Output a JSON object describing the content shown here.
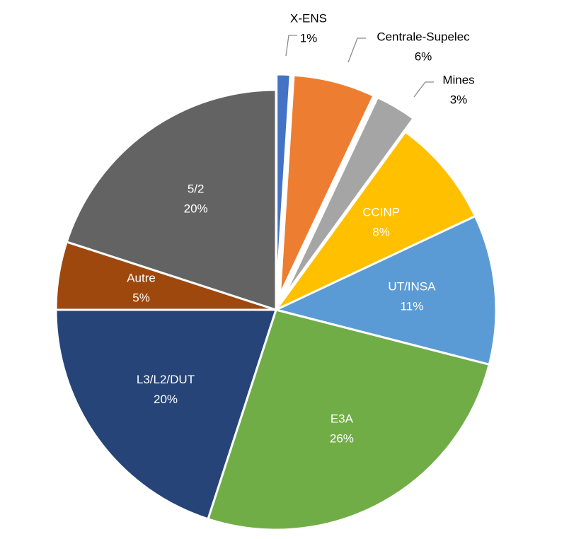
{
  "chart_data": {
    "type": "pie",
    "slices": [
      {
        "name": "X-ENS",
        "value": 1,
        "label": "1%",
        "color": "#4472C4",
        "exploded": true
      },
      {
        "name": "Centrale-Supelec",
        "value": 6,
        "label": "6%",
        "color": "#ED7D31",
        "exploded": true
      },
      {
        "name": "Mines",
        "value": 3,
        "label": "3%",
        "color": "#A5A5A5",
        "exploded": true
      },
      {
        "name": "CCINP",
        "value": 8,
        "label": "8%",
        "color": "#FFC000",
        "exploded": false
      },
      {
        "name": "UT/INSA",
        "value": 11,
        "label": "11%",
        "color": "#5B9BD5",
        "exploded": false
      },
      {
        "name": "E3A",
        "value": 26,
        "label": "26%",
        "color": "#70AD47",
        "exploded": false
      },
      {
        "name": "L3/L2/DUT",
        "value": 20,
        "label": "20%",
        "color": "#264478",
        "exploded": false
      },
      {
        "name": "Autre",
        "value": 5,
        "label": "5%",
        "color": "#9E480E",
        "exploded": false
      },
      {
        "name": "5/2",
        "value": 20,
        "label": "20%",
        "color": "#636363",
        "exploded": false
      }
    ],
    "start_angle_deg": 0,
    "direction": "clockwise",
    "legend": "none",
    "data_labels": "category-and-percent"
  }
}
